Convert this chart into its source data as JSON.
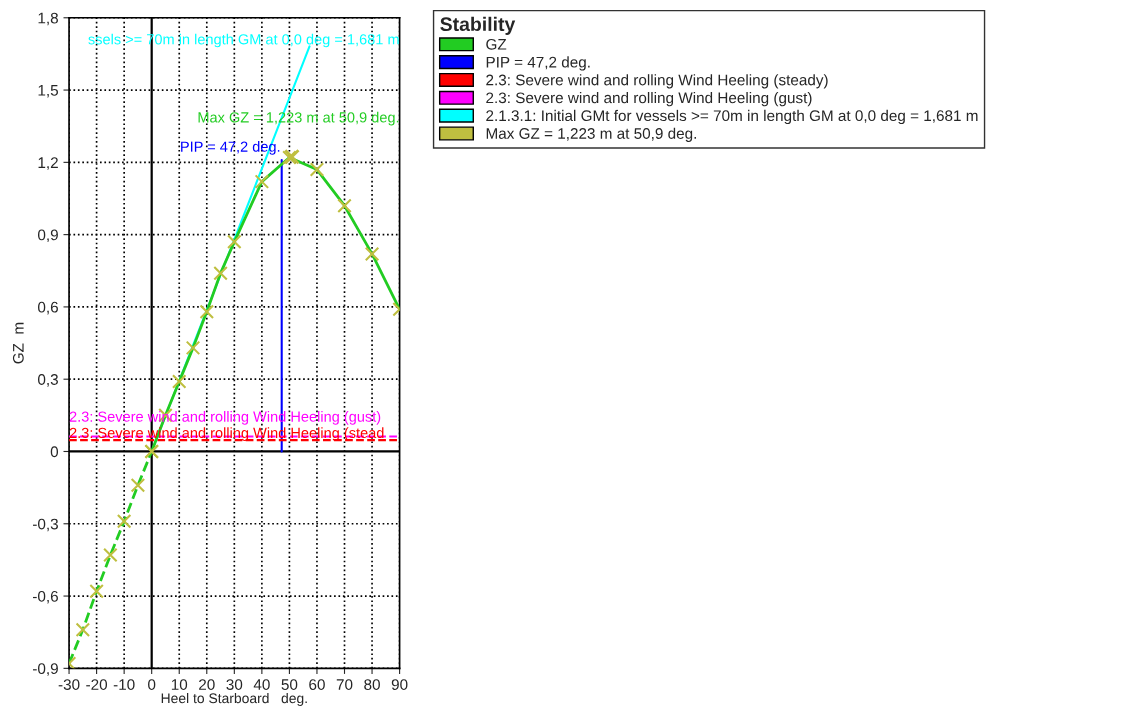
{
  "chart_data": {
    "type": "line",
    "xlabel": "Heel to Starboard   deg.",
    "ylabel": "GZ  m",
    "legend_title": "Stability",
    "legend": "right",
    "grid": true,
    "xlim": [
      -30,
      90
    ],
    "xticks": [
      -30,
      -20,
      -10,
      0,
      10,
      20,
      30,
      40,
      50,
      60,
      70,
      80,
      90
    ],
    "ylim": [
      -0.9,
      1.8
    ],
    "yticks": [
      {
        "value": -0.9,
        "label": "-0,9"
      },
      {
        "value": -0.6,
        "label": "-0,6"
      },
      {
        "value": -0.3,
        "label": "-0,3"
      },
      0,
      {
        "value": 0.3,
        "label": "0,3"
      },
      {
        "value": 0.6,
        "label": "0,6"
      },
      {
        "value": 0.9,
        "label": "0,9"
      },
      {
        "value": 1.2,
        "label": "1,2"
      },
      {
        "value": 1.5,
        "label": "1,5"
      },
      {
        "value": 1.8,
        "label": "1,8"
      }
    ],
    "series": [
      {
        "name": "GZ",
        "color": "#22cc22",
        "line_style": "solid",
        "marker": "cross",
        "x": [
          0,
          5,
          10,
          15,
          20,
          25,
          30,
          40,
          50,
          60,
          70,
          80,
          90
        ],
        "values": [
          0,
          0.15,
          0.29,
          0.43,
          0.58,
          0.74,
          0.87,
          1.12,
          1.22,
          1.17,
          1.02,
          0.82,
          0.59
        ]
      },
      {
        "color": "#22cc22",
        "line_style": "dashed",
        "marker": "cross",
        "x": [
          -30,
          -25,
          -20,
          -15,
          -10,
          -5,
          0
        ],
        "values": [
          -0.88,
          -0.74,
          -0.58,
          -0.43,
          -0.29,
          -0.14,
          0
        ]
      },
      {
        "name": "PIP = 47,2 deg.",
        "color": "#0000ff",
        "type": "line",
        "line_style": "solid",
        "marker": "none",
        "x": [
          47.2,
          47.2
        ],
        "values": [
          0,
          1.21
        ]
      },
      {
        "name": "2.3: Severe wind and rolling Wind Heeling (steady)",
        "color": "#ff0000",
        "type": "line",
        "line_style": "dashed",
        "marker": "none",
        "x": [
          -30,
          90
        ],
        "values": [
          0.047,
          0.047
        ]
      },
      {
        "name": "2.3: Severe wind and rolling Wind Heeling (gust)",
        "color": "#ff00ff",
        "type": "line",
        "line_style": "dashed",
        "marker": "none",
        "x": [
          -30,
          90
        ],
        "values": [
          0.062,
          0.062
        ]
      },
      {
        "name": "2.1.3.1: Initial GMt for vessels >= 70m in length GM at 0,0 deg = 1,681 m",
        "color": "#00ffff",
        "type": "line",
        "line_style": "solid",
        "marker": "none",
        "x": [
          0,
          57.3
        ],
        "values": [
          0,
          1.681
        ]
      },
      {
        "name": "Max GZ = 1,223 m at 50,9 deg.",
        "color": "#bfbf40",
        "type": "scatter",
        "marker": "cross",
        "x": [
          50.9
        ],
        "values": [
          1.223
        ]
      }
    ],
    "annotations": [
      "ssels >= 70m in length GM at 0,0 deg = 1,681 m",
      "PIP = 47,2 deg.",
      "Max GZ = 1,223 m at 50,9 deg.",
      "2.3: Severe wind and rolling Wind Heeling (gust)",
      "2.3: Severe wind and rolling Wind Heeling (stead"
    ]
  }
}
